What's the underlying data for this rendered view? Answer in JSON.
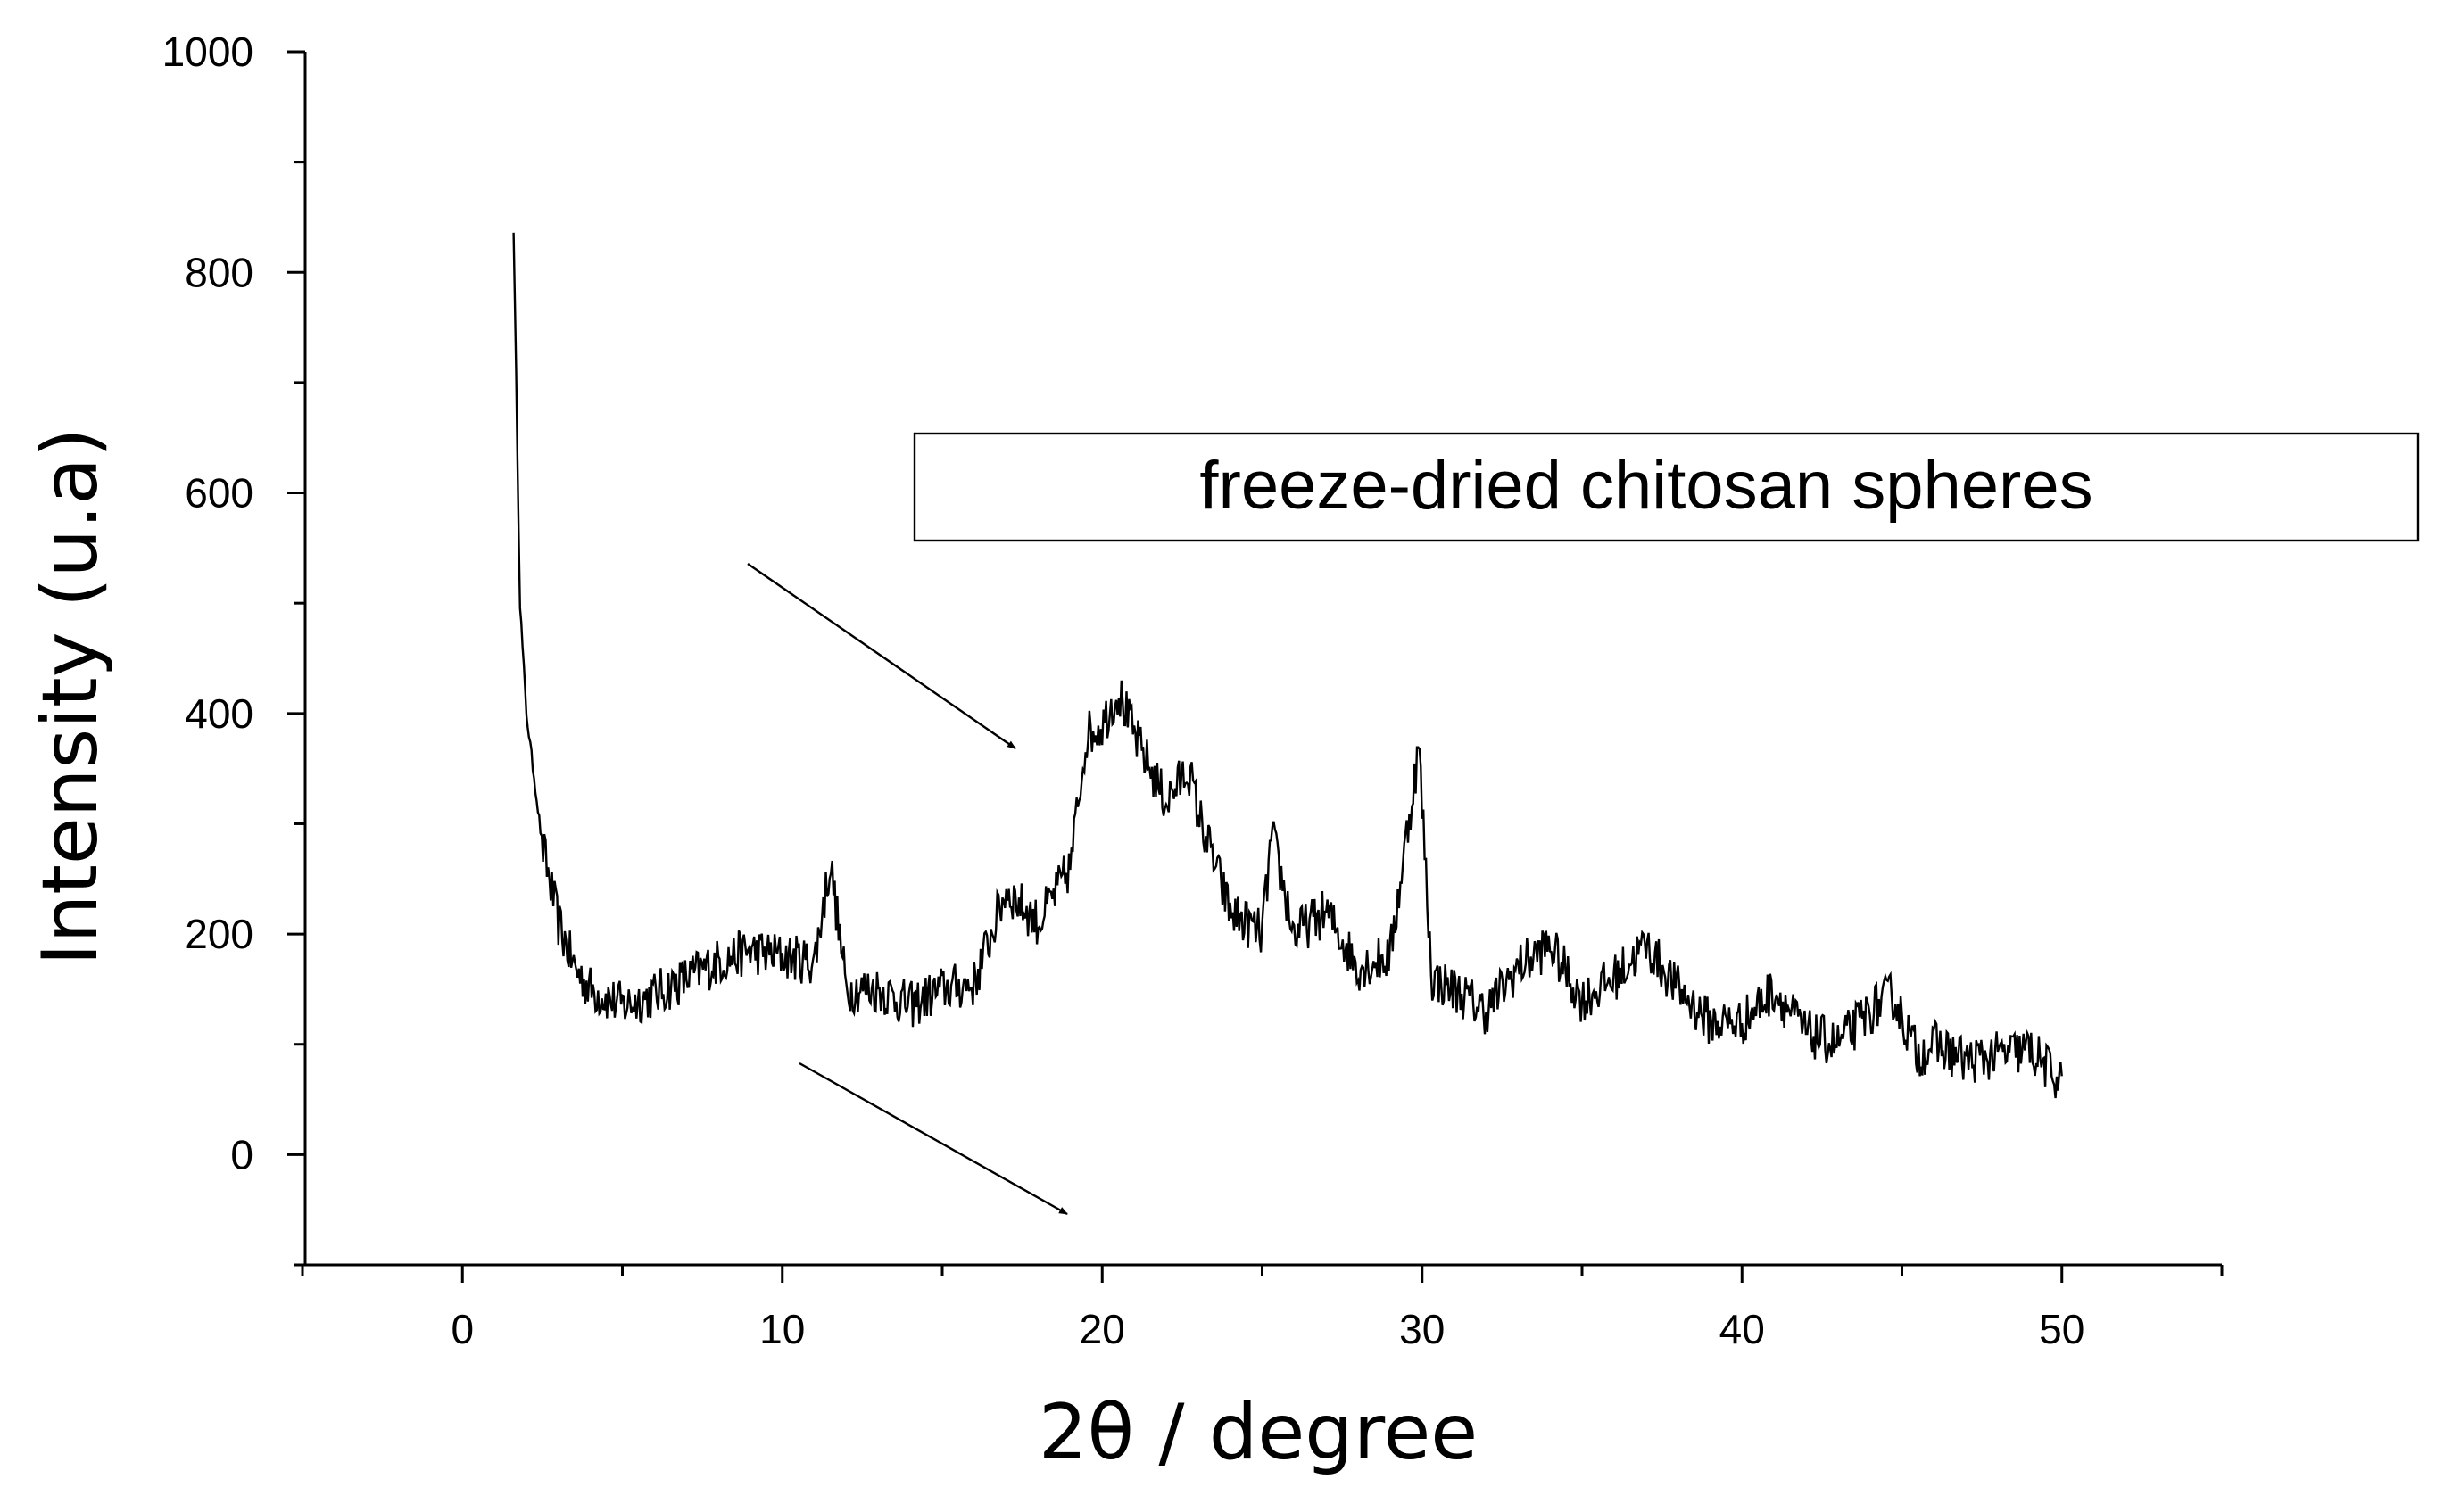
{
  "chart_data": {
    "type": "line",
    "title": "",
    "xlabel": "2θ / degree",
    "ylabel": "Intensity (u.a)",
    "xlim": [
      -5,
      55
    ],
    "ylim": [
      -100,
      1000
    ],
    "xticks": [
      0,
      10,
      20,
      30,
      40,
      50
    ],
    "yticks": [
      0,
      200,
      400,
      600,
      800,
      1000
    ],
    "xtick_labels": [
      "0",
      "10",
      "20",
      "30",
      "40",
      "50"
    ],
    "ytick_labels": [
      "0",
      "200",
      "400",
      "600",
      "800",
      "1000"
    ],
    "grid": false,
    "legend": {
      "text": "freeze-dried chitosan spheres",
      "placement": "top-right"
    },
    "series": [
      {
        "name": "freeze-dried chitosan spheres",
        "color": "#000000",
        "points": [
          [
            1.6,
            840
          ],
          [
            1.8,
            500
          ],
          [
            2,
            400
          ],
          [
            2.5,
            280
          ],
          [
            3,
            210
          ],
          [
            3.5,
            170
          ],
          [
            4,
            150
          ],
          [
            5,
            135
          ],
          [
            6,
            145
          ],
          [
            7,
            160
          ],
          [
            8,
            175
          ],
          [
            9,
            185
          ],
          [
            10,
            180
          ],
          [
            11,
            175
          ],
          [
            11.5,
            265
          ],
          [
            12,
            150
          ],
          [
            13,
            150
          ],
          [
            14,
            135
          ],
          [
            15,
            150
          ],
          [
            16,
            155
          ],
          [
            17,
            240
          ],
          [
            18,
            210
          ],
          [
            19,
            260
          ],
          [
            19.5,
            380
          ],
          [
            20,
            390
          ],
          [
            20.5,
            420
          ],
          [
            21,
            380
          ],
          [
            22,
            320
          ],
          [
            22.7,
            350
          ],
          [
            23,
            310
          ],
          [
            24,
            220
          ],
          [
            25,
            200
          ],
          [
            25.3,
            290
          ],
          [
            26,
            200
          ],
          [
            27,
            220
          ],
          [
            28,
            170
          ],
          [
            29,
            180
          ],
          [
            29.9,
            370
          ],
          [
            30.3,
            160
          ],
          [
            31,
            150
          ],
          [
            32,
            130
          ],
          [
            33,
            170
          ],
          [
            34,
            190
          ],
          [
            35,
            140
          ],
          [
            36,
            160
          ],
          [
            37,
            190
          ],
          [
            38,
            150
          ],
          [
            39,
            120
          ],
          [
            40,
            120
          ],
          [
            41,
            150
          ],
          [
            42,
            110
          ],
          [
            43,
            100
          ],
          [
            44,
            130
          ],
          [
            44.7,
            145
          ],
          [
            45.5,
            90
          ],
          [
            46,
            100
          ],
          [
            47,
            85
          ],
          [
            48,
            90
          ],
          [
            49,
            95
          ],
          [
            50,
            65
          ]
        ]
      }
    ]
  }
}
